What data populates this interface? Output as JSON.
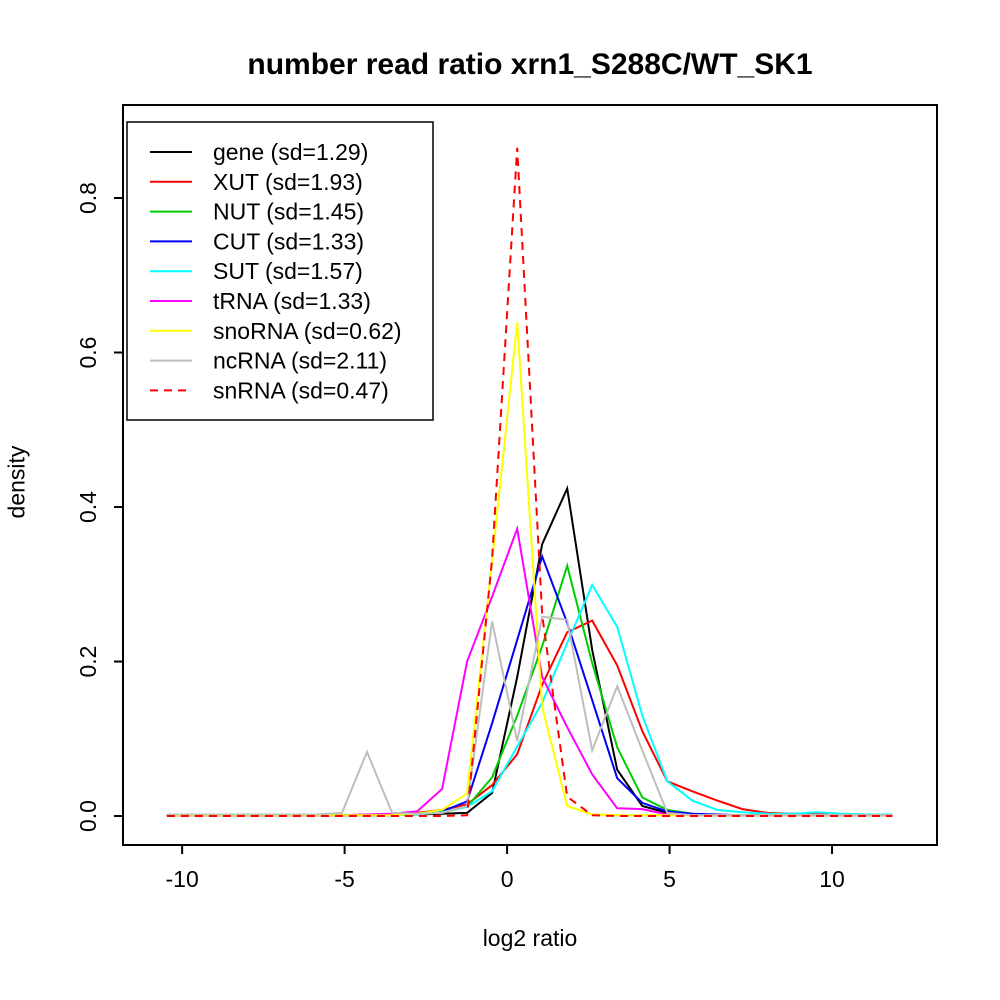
{
  "page": {
    "background": "#FFFFFF"
  },
  "title": "number read ratio xrn1_S288C/WT_SK1",
  "axes_labels": {
    "x": "log2 ratio",
    "y": "density"
  },
  "chart_data": {
    "type": "line",
    "title": "number read ratio xrn1_S288C/WT_SK1",
    "xlabel": "log2 ratio",
    "ylabel": "density",
    "grid": false,
    "legend_position": "top-left",
    "x_range": [
      -11.82,
      13.23
    ],
    "y_range": [
      -0.0375,
      0.9204
    ],
    "x_ticks": [
      {
        "value": -10,
        "label": "-10"
      },
      {
        "value": -5,
        "label": "-5"
      },
      {
        "value": 0,
        "label": "0"
      },
      {
        "value": 5,
        "label": "5"
      },
      {
        "value": 10,
        "label": "10"
      }
    ],
    "y_ticks": [
      {
        "value": 0.0,
        "label": "0.0"
      },
      {
        "value": 0.2,
        "label": "0.2"
      },
      {
        "value": 0.4,
        "label": "0.4"
      },
      {
        "value": 0.6,
        "label": "0.6"
      },
      {
        "value": 0.8,
        "label": "0.8"
      }
    ],
    "x": [
      -10.47,
      -9.7,
      -8.93,
      -8.16,
      -7.39,
      -6.62,
      -5.85,
      -5.08,
      -4.31,
      -3.54,
      -2.77,
      -2.0,
      -1.23,
      -0.46,
      0.31,
      1.08,
      1.85,
      2.62,
      3.39,
      4.16,
      4.93,
      5.7,
      6.47,
      7.24,
      8.01,
      8.78,
      9.55,
      10.32,
      11.09,
      11.86
    ],
    "series": [
      {
        "name": "gene",
        "label": "gene (sd=1.29)",
        "sd": 1.29,
        "color": "#000000",
        "linestyle": "solid",
        "values": [
          0.001,
          0.001,
          0.001,
          0.001,
          0.001,
          0.001,
          0.001,
          0.001,
          0.001,
          0.001,
          0.002,
          0.003,
          0.004,
          0.03,
          0.18,
          0.352,
          0.424,
          0.215,
          0.06,
          0.013,
          0.004,
          0.002,
          0.001,
          0.001,
          0.001,
          0.001,
          0.001,
          0.001,
          0.001,
          0.001
        ]
      },
      {
        "name": "XUT",
        "label": "XUT (sd=1.93)",
        "sd": 1.93,
        "color": "#FF0000",
        "linestyle": "solid",
        "values": [
          0.001,
          0.001,
          0.001,
          0.001,
          0.001,
          0.001,
          0.001,
          0.001,
          0.002,
          0.002,
          0.004,
          0.008,
          0.015,
          0.04,
          0.08,
          0.17,
          0.238,
          0.253,
          0.195,
          0.11,
          0.045,
          0.032,
          0.02,
          0.009,
          0.004,
          0.003,
          0.002,
          0.002,
          0.002,
          0.002
        ]
      },
      {
        "name": "NUT",
        "label": "NUT (sd=1.45)",
        "sd": 1.45,
        "color": "#00CD00",
        "linestyle": "solid",
        "values": [
          0.001,
          0.001,
          0.001,
          0.001,
          0.001,
          0.001,
          0.001,
          0.001,
          0.001,
          0.001,
          0.002,
          0.005,
          0.012,
          0.05,
          0.13,
          0.22,
          0.324,
          0.198,
          0.089,
          0.024,
          0.008,
          0.003,
          0.001,
          0.001,
          0.001,
          0.001,
          0.001,
          0.001,
          0.001,
          0.001
        ]
      },
      {
        "name": "CUT",
        "label": "CUT (sd=1.33)",
        "sd": 1.33,
        "color": "#0000FF",
        "linestyle": "solid",
        "values": [
          0.001,
          0.001,
          0.001,
          0.001,
          0.001,
          0.001,
          0.001,
          0.001,
          0.001,
          0.001,
          0.002,
          0.006,
          0.019,
          0.12,
          0.228,
          0.336,
          0.25,
          0.15,
          0.049,
          0.017,
          0.006,
          0.003,
          0.002,
          0.001,
          0.001,
          0.001,
          0.001,
          0.001,
          0.001,
          0.001
        ]
      },
      {
        "name": "SUT",
        "label": "SUT (sd=1.57)",
        "sd": 1.57,
        "color": "#00FFFF",
        "linestyle": "solid",
        "values": [
          0.001,
          0.001,
          0.001,
          0.001,
          0.001,
          0.001,
          0.001,
          0.001,
          0.001,
          0.001,
          0.002,
          0.005,
          0.012,
          0.032,
          0.09,
          0.147,
          0.224,
          0.299,
          0.245,
          0.13,
          0.045,
          0.02,
          0.008,
          0.005,
          0.003,
          0.003,
          0.005,
          0.003,
          0.002,
          0.002
        ]
      },
      {
        "name": "tRNA",
        "label": "tRNA (sd=1.33)",
        "sd": 1.33,
        "color": "#FF00FF",
        "linestyle": "solid",
        "values": [
          0.001,
          0.001,
          0.001,
          0.001,
          0.001,
          0.001,
          0.001,
          0.001,
          0.002,
          0.003,
          0.006,
          0.035,
          0.2,
          0.284,
          0.372,
          0.18,
          0.115,
          0.054,
          0.01,
          0.009,
          0.002,
          0.001,
          0.001,
          0.001,
          0.001,
          0.001,
          0.001,
          0.001,
          0.001,
          0.001
        ]
      },
      {
        "name": "snoRNA",
        "label": "snoRNA (sd=0.62)",
        "sd": 0.62,
        "color": "#FFFF00",
        "linestyle": "solid",
        "values": [
          0.001,
          0.001,
          0.001,
          0.001,
          0.001,
          0.001,
          0.001,
          0.001,
          0.001,
          0.001,
          0.003,
          0.008,
          0.029,
          0.33,
          0.639,
          0.141,
          0.013,
          0.002,
          0.001,
          0.001,
          0.001,
          0.001,
          0.001,
          0.001,
          0.001,
          0.001,
          0.001,
          0.001,
          0.001,
          0.001
        ]
      },
      {
        "name": "ncRNA",
        "label": "ncRNA (sd=2.11)",
        "sd": 2.11,
        "color": "#BEBEBE",
        "linestyle": "solid",
        "values": [
          0.002,
          0.002,
          0.002,
          0.002,
          0.002,
          0.002,
          0.002,
          0.004,
          0.083,
          0.004,
          0.003,
          0.004,
          0.013,
          0.252,
          0.097,
          0.258,
          0.254,
          0.085,
          0.168,
          0.085,
          0.004,
          0.001,
          0.001,
          0.001,
          0.001,
          0.001,
          0.001,
          0.001,
          0.001,
          0.001
        ]
      },
      {
        "name": "snRNA",
        "label": "snRNA (sd=0.47)",
        "sd": 0.47,
        "color": "#FF0000",
        "linestyle": "dashed",
        "values": [
          0.0,
          0.0,
          0.0,
          0.0,
          0.0,
          0.0,
          0.0,
          0.0,
          0.0,
          0.0,
          0.0,
          0.0,
          0.001,
          0.333,
          0.865,
          0.26,
          0.025,
          0.001,
          0.0,
          0.0,
          0.0,
          0.0,
          0.0,
          0.0,
          0.0,
          0.0,
          0.0,
          0.0,
          0.0,
          0.0
        ]
      }
    ]
  }
}
